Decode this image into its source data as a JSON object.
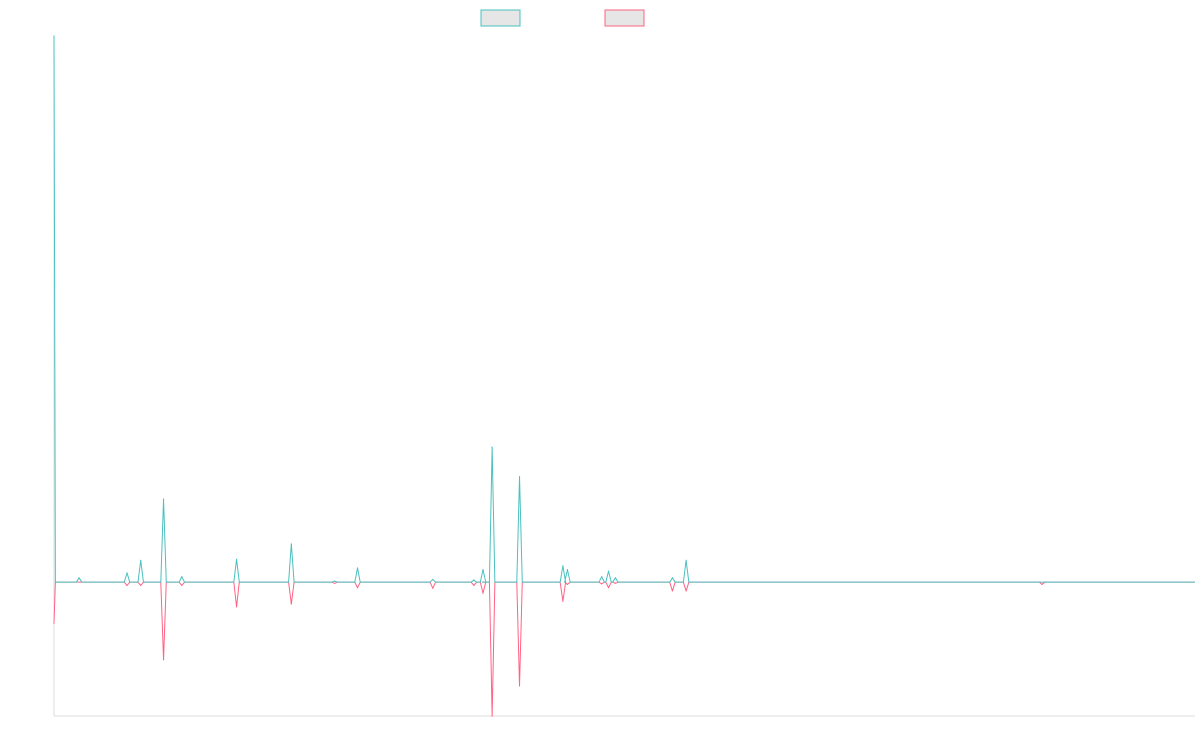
{
  "chart_data": {
    "type": "line",
    "title": "",
    "xlabel": "",
    "ylabel": "",
    "legend_position": "top-center",
    "grid": false,
    "x": [
      0,
      2,
      5,
      7,
      10,
      12,
      15,
      17,
      20,
      22,
      25,
      27,
      30,
      32,
      35,
      37,
      40,
      42,
      45,
      47,
      50,
      52,
      55,
      57,
      60,
      62,
      65,
      67,
      70,
      72,
      75,
      77,
      80,
      82,
      85,
      87,
      90,
      92,
      95,
      97,
      100,
      102,
      105,
      107,
      110,
      112,
      115,
      117,
      120,
      122,
      125,
      127,
      130,
      132,
      135,
      137,
      140,
      142,
      145,
      147,
      150,
      152,
      155,
      157,
      160,
      162,
      165,
      167,
      170,
      172,
      175,
      177,
      180,
      182,
      185,
      187,
      190,
      192,
      195,
      197,
      200,
      202,
      205,
      207,
      210,
      212,
      215,
      217,
      220,
      222,
      225,
      227,
      230,
      232,
      235,
      237,
      240,
      242,
      245,
      247,
      250,
      252,
      255,
      257,
      260,
      262,
      265,
      267,
      270,
      272,
      275,
      277,
      280,
      282,
      285,
      287,
      290,
      292,
      295,
      297,
      300,
      302,
      305,
      307,
      310,
      312,
      315,
      317,
      320,
      322,
      325,
      327,
      330,
      332,
      335,
      337,
      340,
      342,
      345,
      347,
      350,
      352,
      355,
      357,
      360,
      362,
      365,
      367,
      370,
      372,
      375,
      377,
      380,
      382,
      385,
      387,
      390,
      392,
      395,
      397,
      400,
      402,
      405,
      407,
      410,
      412,
      415,
      417,
      420,
      422,
      425,
      427,
      430,
      432,
      435,
      437,
      440,
      442,
      445,
      447,
      450,
      452,
      455,
      457,
      460,
      462,
      465,
      467,
      470,
      472,
      475,
      477,
      480,
      482,
      485,
      487,
      490,
      492,
      495,
      497,
      500
    ],
    "series": [
      {
        "color": "#4bc0c0",
        "values": [
          100,
          0,
          0,
          0,
          0.8,
          0,
          0,
          0,
          0,
          0,
          0,
          0,
          0,
          0,
          0,
          0,
          0,
          0,
          0,
          0,
          0,
          0,
          0,
          0,
          0,
          0,
          0,
          0,
          0,
          0,
          0,
          0,
          0,
          0,
          0,
          0,
          0,
          0,
          0,
          0,
          0,
          0,
          0,
          0,
          0,
          0,
          0,
          0,
          0,
          0,
          0,
          0,
          0,
          0,
          0,
          0,
          0,
          0,
          0,
          0,
          0,
          0,
          0,
          0,
          0,
          0,
          0,
          0,
          0,
          0,
          0,
          0,
          0,
          0,
          0,
          0,
          0,
          0,
          0,
          0,
          0,
          0,
          0,
          0,
          0,
          0,
          0,
          0,
          0,
          0,
          0,
          0,
          0,
          0,
          0,
          0,
          0,
          0,
          0,
          0,
          0,
          0,
          0,
          0,
          0,
          0,
          0,
          0,
          0,
          0,
          0,
          0,
          0,
          0,
          0,
          0,
          0,
          0,
          0,
          0,
          0,
          0,
          0,
          0,
          0,
          0,
          0,
          0,
          0,
          0,
          0,
          0,
          0,
          0,
          0,
          0,
          0,
          0,
          0,
          0,
          0,
          0,
          0,
          0,
          0,
          0,
          0,
          0,
          0,
          0,
          0,
          0,
          0,
          0,
          0,
          0,
          0,
          0,
          0,
          0,
          0,
          0,
          0,
          0,
          0,
          0,
          0,
          0,
          0,
          0,
          0,
          0,
          0,
          0,
          0,
          0,
          0,
          0,
          0,
          0,
          0,
          0,
          0,
          0,
          0,
          0,
          0,
          0,
          0,
          0,
          0,
          0,
          0,
          0,
          0,
          0,
          0,
          0,
          0,
          0,
          0
        ]
      },
      {
        "color": "#ff6384",
        "values": [
          -7.5,
          0,
          0,
          0,
          0,
          0,
          0,
          0,
          0,
          0,
          0,
          0,
          0,
          0,
          0,
          0,
          0,
          0,
          0,
          0,
          0,
          0,
          0,
          0,
          0,
          0,
          0,
          0,
          0,
          0,
          0,
          0,
          0,
          0,
          0,
          0,
          0,
          0,
          0,
          0,
          0,
          0,
          0,
          0,
          0,
          0,
          0,
          0,
          0,
          0,
          0,
          0,
          0,
          0,
          0,
          0,
          0,
          0,
          0,
          0,
          0,
          0,
          0,
          0,
          0,
          0,
          0,
          0,
          0,
          0,
          0,
          0,
          0,
          0,
          0,
          0,
          0,
          0,
          0,
          0,
          0,
          0,
          0,
          0,
          0,
          0,
          0,
          0,
          0,
          0,
          0,
          0,
          0,
          0,
          0,
          0,
          0,
          0,
          0,
          0,
          0,
          0,
          0,
          0,
          0,
          0,
          0,
          0,
          0,
          0,
          0,
          0,
          0,
          0,
          0,
          0,
          0,
          0,
          0,
          0,
          0,
          0,
          0,
          0,
          0,
          0,
          0,
          0,
          0,
          0,
          0,
          0,
          0,
          0,
          0,
          0,
          0,
          0,
          0,
          0,
          0,
          0,
          0,
          0,
          0,
          0,
          0,
          0,
          0,
          0,
          0,
          0,
          0,
          0,
          0,
          0,
          0,
          0,
          0,
          0,
          0,
          0,
          0,
          0,
          0,
          0,
          0,
          0,
          0,
          0,
          0,
          0,
          0,
          0,
          0,
          0,
          0,
          0,
          0,
          0,
          0,
          0,
          0,
          0,
          0,
          0,
          0,
          0,
          0,
          0,
          0,
          0,
          0,
          0,
          0,
          0,
          0,
          0,
          0,
          0,
          0
        ]
      }
    ],
    "spikes": [
      {
        "x": 0,
        "a": 100,
        "b": -7.5
      },
      {
        "x": 11,
        "a": 0.8,
        "b": 0
      },
      {
        "x": 32,
        "a": 1.7,
        "b": -0.6
      },
      {
        "x": 38,
        "a": 4,
        "b": -0.6
      },
      {
        "x": 48,
        "a": 15.2,
        "b": -14.2
      },
      {
        "x": 56,
        "a": 1.0,
        "b": -0.6
      },
      {
        "x": 80,
        "a": 4.2,
        "b": -4.5
      },
      {
        "x": 104,
        "a": 7,
        "b": -4
      },
      {
        "x": 123,
        "a": 0.2,
        "b": -0.2
      },
      {
        "x": 133,
        "a": 2.6,
        "b": -1
      },
      {
        "x": 166,
        "a": 0.5,
        "b": -1.1
      },
      {
        "x": 184,
        "a": 0.4,
        "b": -0.6
      },
      {
        "x": 188,
        "a": 2.3,
        "b": -2
      },
      {
        "x": 189,
        "a": 0,
        "b": 0
      },
      {
        "x": 192,
        "a": 24.7,
        "b": -24.5
      },
      {
        "x": 204,
        "a": 19.3,
        "b": -19
      },
      {
        "x": 223,
        "a": 3,
        "b": -3.5
      },
      {
        "x": 225,
        "a": 2.3,
        "b": -0.4
      },
      {
        "x": 240,
        "a": 1,
        "b": -0.3
      },
      {
        "x": 243,
        "a": 2,
        "b": -1
      },
      {
        "x": 246,
        "a": 0.8,
        "b": -0.2
      },
      {
        "x": 271,
        "a": 0.8,
        "b": -1.6
      },
      {
        "x": 277,
        "a": 4,
        "b": -1.6
      },
      {
        "x": 433,
        "a": 0,
        "b": -0.4
      }
    ],
    "xlim": [
      0,
      500
    ],
    "ylim": [
      -24.5,
      100
    ]
  }
}
